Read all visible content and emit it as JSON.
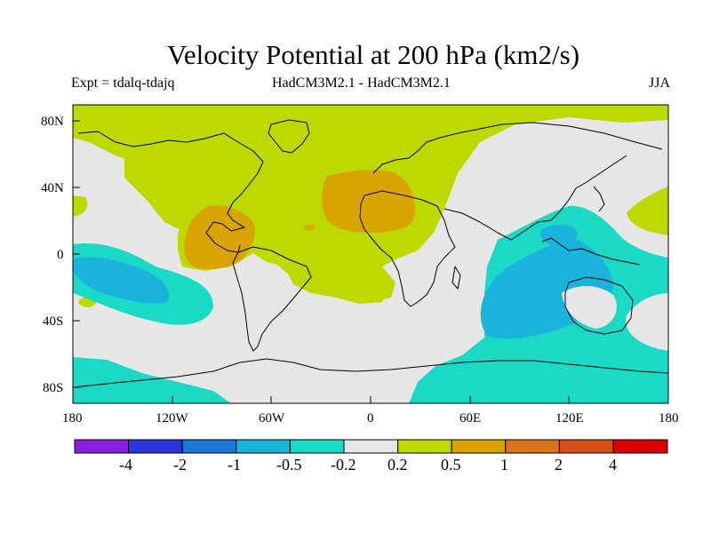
{
  "header": {
    "title": "Velocity Potential at 200 hPa (km2/s)",
    "expt": "Expt = tdalq-tdajq",
    "model": "HadCM3M2.1 - HadCM3M2.1",
    "season": "JJA"
  },
  "map": {
    "projection": "cylindrical-equidistant",
    "lon_ticks": [
      "180",
      "120W",
      "60W",
      "0",
      "60E",
      "120E",
      "180"
    ],
    "lat_ticks": [
      "80N",
      "40N",
      "0",
      "40S",
      "80S"
    ],
    "background_color": "#e6e6e6",
    "coastline_color": "#000000"
  },
  "colorbar": {
    "colors": [
      "#8a1fe0",
      "#2a36d8",
      "#1b7ad9",
      "#19b3dc",
      "#1ad9c5",
      "#e6e6e6",
      "#bdd900",
      "#d9a300",
      "#d9741a",
      "#d94d1a",
      "#d90000"
    ],
    "labels": [
      "-4",
      "-2",
      "-1",
      "-0.5",
      "-0.2",
      "0.2",
      "0.5",
      "1",
      "2",
      "4"
    ]
  }
}
